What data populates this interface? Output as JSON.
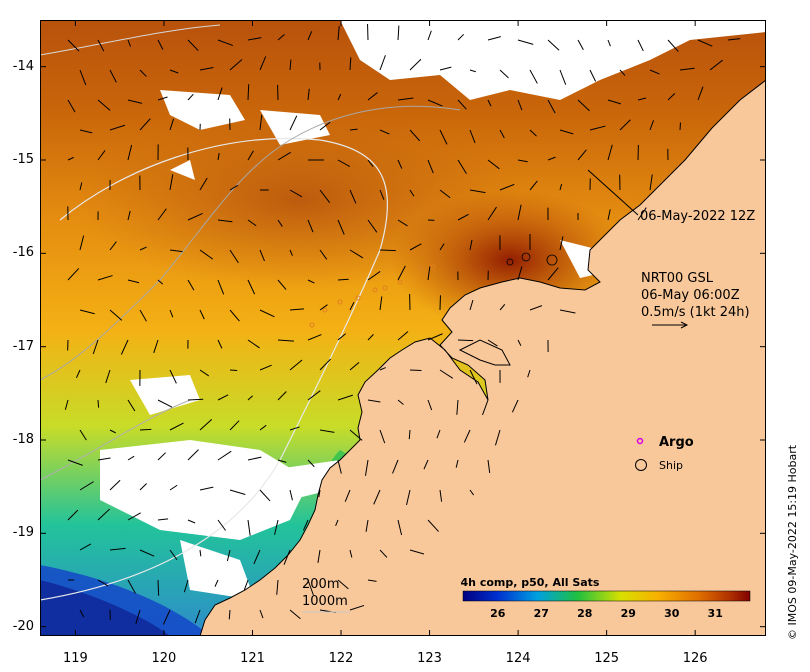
{
  "map": {
    "lon_ticks": [
      "119",
      "120",
      "121",
      "122",
      "123",
      "124",
      "125",
      "126"
    ],
    "lat_ticks": [
      "-14",
      "-15",
      "-16",
      "-17",
      "-18",
      "-19",
      "-20"
    ],
    "lon_range": [
      118.6,
      126.8
    ],
    "lat_range": [
      -20.1,
      -13.5
    ],
    "timestamp_label": "06-May-2022 12Z",
    "current_source": "NRT00 GSL",
    "current_time": "06-May 06:00Z",
    "current_scale": "0.5m/s (1kt 24h)",
    "legend": {
      "argo": "Argo",
      "ship": "Ship"
    },
    "isobaths": [
      "200m",
      "1000m"
    ],
    "colorbar": {
      "title": "4h comp, p50, All Sats",
      "ticks": [
        "26",
        "27",
        "28",
        "29",
        "30",
        "31"
      ],
      "range": [
        25.2,
        31.8
      ]
    },
    "colors": {
      "land": "#f9c89a",
      "cloud": "#ffffff",
      "argo": "#e000e0"
    },
    "credit": "© IMOS 09-May-2022 15:19 Hobart"
  }
}
